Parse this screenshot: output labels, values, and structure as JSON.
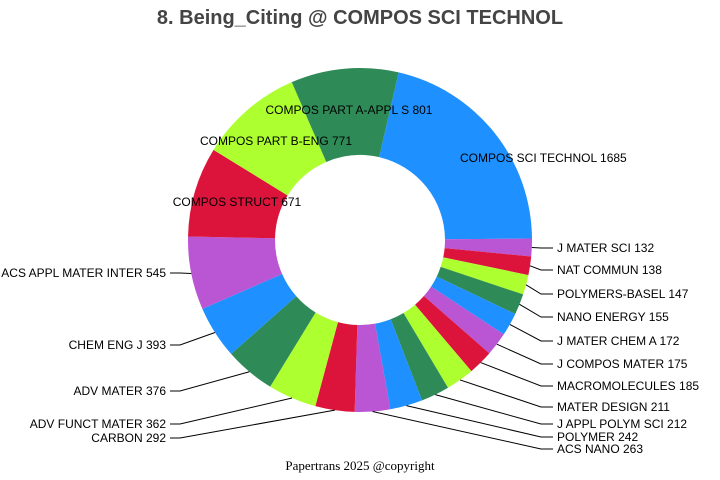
{
  "chart_data": {
    "type": "pie",
    "donut": true,
    "title": "8. Being_Citing @ COMPOS SCI TECHNOL",
    "footer": "Papertrans 2025 @copyright",
    "categories": [
      "COMPOS SCI TECHNOL",
      "COMPOS PART A-APPL S",
      "COMPOS PART B-ENG",
      "COMPOS STRUCT",
      "ACS APPL MATER INTER",
      "CHEM ENG J",
      "ADV MATER",
      "ADV FUNCT MATER",
      "CARBON",
      "ACS NANO",
      "POLYMER",
      "J APPL POLYM SCI",
      "MATER DESIGN",
      "MACROMOLECULES",
      "J COMPOS MATER",
      "J MATER CHEM A",
      "NANO ENERGY",
      "POLYMERS-BASEL",
      "NAT COMMUN",
      "J MATER SCI"
    ],
    "values": [
      1685,
      801,
      771,
      671,
      545,
      393,
      376,
      362,
      292,
      263,
      242,
      212,
      211,
      185,
      175,
      172,
      155,
      147,
      138,
      132
    ],
    "colors": [
      "#1E90FF",
      "#2E8B57",
      "#ADFF2F",
      "#DC143C",
      "#BA55D3"
    ],
    "legend": "none"
  }
}
